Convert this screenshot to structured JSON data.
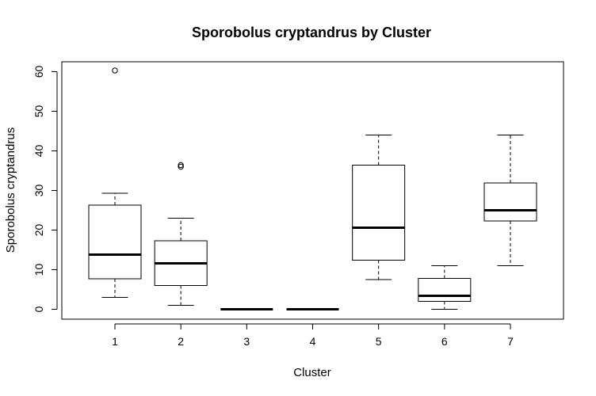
{
  "chart_data": {
    "type": "boxplot",
    "title": "Sporobolus cryptandrus by Cluster",
    "xlabel": "Cluster",
    "ylabel": "Sporobolus cryptandrus",
    "categories": [
      "1",
      "2",
      "3",
      "4",
      "5",
      "6",
      "7"
    ],
    "yticks": [
      "0",
      "10",
      "20",
      "30",
      "40",
      "50",
      "60"
    ],
    "ylim": [
      -2.5,
      62.5
    ],
    "boxes": [
      {
        "category": "1",
        "whisker_low": 3,
        "q1": 7.7,
        "median": 13.8,
        "q3": 26.3,
        "whisker_high": 29.3,
        "outliers": [
          60.3
        ]
      },
      {
        "category": "2",
        "whisker_low": 1,
        "q1": 6,
        "median": 11.6,
        "q3": 17.3,
        "whisker_high": 23,
        "outliers": [
          36,
          36.4
        ]
      },
      {
        "category": "3",
        "whisker_low": 0,
        "q1": 0,
        "median": 0,
        "q3": 0,
        "whisker_high": 0,
        "outliers": []
      },
      {
        "category": "4",
        "whisker_low": 0,
        "q1": 0,
        "median": 0,
        "q3": 0,
        "whisker_high": 0,
        "outliers": []
      },
      {
        "category": "5",
        "whisker_low": 7.5,
        "q1": 12.4,
        "median": 20.6,
        "q3": 36.4,
        "whisker_high": 44,
        "outliers": []
      },
      {
        "category": "6",
        "whisker_low": 0,
        "q1": 2,
        "median": 3.4,
        "q3": 7.8,
        "whisker_high": 11,
        "outliers": []
      },
      {
        "category": "7",
        "whisker_low": 11,
        "q1": 22.3,
        "median": 25,
        "q3": 31.9,
        "whisker_high": 44,
        "outliers": []
      }
    ],
    "grid": false,
    "legend": "none",
    "colors": {
      "box_fill": "#ffffff",
      "stroke": "#000000"
    }
  }
}
